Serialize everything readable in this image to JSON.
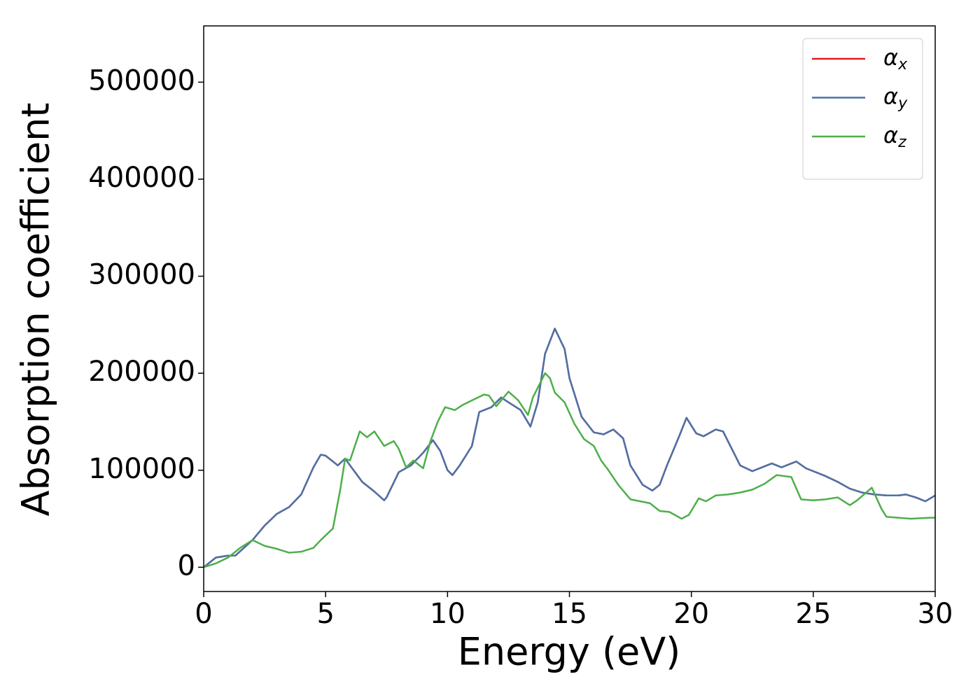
{
  "chart_data": {
    "type": "line",
    "x_label": "Energy (eV)",
    "y_label": "Absorption coefficient",
    "xlim": [
      0,
      30
    ],
    "ylim": [
      -25000,
      558000
    ],
    "xticks": [
      0,
      5,
      10,
      15,
      20,
      25,
      30
    ],
    "yticks": [
      0,
      100000,
      200000,
      300000,
      400000,
      500000
    ],
    "grid": false,
    "legend": "upper right",
    "series": [
      {
        "name": "αx",
        "color": "#e41a1c",
        "x": [
          0,
          0.5,
          1,
          1.3,
          2,
          2.5,
          3,
          3.5,
          4,
          4.5,
          4.8,
          5,
          5.5,
          5.8,
          6,
          6.5,
          7,
          7.4,
          7.5,
          8,
          8.5,
          9,
          9.4,
          9.7,
          10,
          10.2,
          10.5,
          11,
          11.3,
          11.8,
          12.2,
          12.5,
          13,
          13.4,
          13.7,
          14,
          14.4,
          14.8,
          15,
          15.5,
          16,
          16.4,
          16.8,
          17.2,
          17.5,
          18,
          18.4,
          18.7,
          19,
          19.5,
          19.8,
          20.2,
          20.5,
          21,
          21.3,
          21.7,
          22,
          22.5,
          23,
          23.3,
          23.7,
          24,
          24.3,
          24.7,
          25,
          25.5,
          26,
          26.5,
          27,
          27.5,
          28,
          28.5,
          28.8,
          29.2,
          29.6,
          30
        ],
        "values": [
          0,
          10000,
          12000,
          12000,
          28000,
          43000,
          55000,
          62000,
          75000,
          103000,
          116000,
          115000,
          105000,
          112000,
          105000,
          88000,
          78000,
          69000,
          72000,
          98000,
          105000,
          118000,
          131000,
          120000,
          100000,
          95000,
          105000,
          125000,
          160000,
          165000,
          175000,
          170000,
          162000,
          145000,
          170000,
          220000,
          246000,
          225000,
          195000,
          155000,
          139000,
          137000,
          142000,
          133000,
          105000,
          85000,
          79000,
          85000,
          105000,
          135000,
          154000,
          138000,
          135000,
          142000,
          140000,
          120000,
          105000,
          99000,
          104000,
          107000,
          103000,
          106000,
          109000,
          102000,
          99000,
          94000,
          88000,
          81000,
          77000,
          75000,
          74000,
          74000,
          75000,
          72000,
          68000,
          74000
        ]
      },
      {
        "name": "αy",
        "color": "#4a72a8",
        "x": [
          0,
          0.5,
          1,
          1.3,
          2,
          2.5,
          3,
          3.5,
          4,
          4.5,
          4.8,
          5,
          5.5,
          5.8,
          6,
          6.5,
          7,
          7.4,
          7.5,
          8,
          8.5,
          9,
          9.4,
          9.7,
          10,
          10.2,
          10.5,
          11,
          11.3,
          11.8,
          12.2,
          12.5,
          13,
          13.4,
          13.7,
          14,
          14.4,
          14.8,
          15,
          15.5,
          16,
          16.4,
          16.8,
          17.2,
          17.5,
          18,
          18.4,
          18.7,
          19,
          19.5,
          19.8,
          20.2,
          20.5,
          21,
          21.3,
          21.7,
          22,
          22.5,
          23,
          23.3,
          23.7,
          24,
          24.3,
          24.7,
          25,
          25.5,
          26,
          26.5,
          27,
          27.5,
          28,
          28.5,
          28.8,
          29.2,
          29.6,
          30
        ],
        "values": [
          0,
          10000,
          12000,
          12000,
          28000,
          43000,
          55000,
          62000,
          75000,
          103000,
          116000,
          115000,
          105000,
          112000,
          105000,
          88000,
          78000,
          69000,
          72000,
          98000,
          105000,
          118000,
          131000,
          120000,
          100000,
          95000,
          105000,
          125000,
          160000,
          165000,
          175000,
          170000,
          162000,
          145000,
          170000,
          220000,
          246000,
          225000,
          195000,
          155000,
          139000,
          137000,
          142000,
          133000,
          105000,
          85000,
          79000,
          85000,
          105000,
          135000,
          154000,
          138000,
          135000,
          142000,
          140000,
          120000,
          105000,
          99000,
          104000,
          107000,
          103000,
          106000,
          109000,
          102000,
          99000,
          94000,
          88000,
          81000,
          77000,
          75000,
          74000,
          74000,
          75000,
          72000,
          68000,
          74000
        ]
      },
      {
        "name": "αz",
        "color": "#4daf4a",
        "x": [
          0,
          0.5,
          1,
          1.5,
          2,
          2.5,
          3,
          3.5,
          4,
          4.5,
          4.8,
          5.3,
          5.6,
          5.8,
          6,
          6.4,
          6.7,
          7,
          7.4,
          7.8,
          8,
          8.3,
          8.6,
          9,
          9.3,
          9.6,
          9.9,
          10.3,
          10.6,
          11,
          11.5,
          11.7,
          12,
          12.2,
          12.5,
          12.9,
          13.3,
          13.5,
          14,
          14.2,
          14.4,
          14.8,
          15.2,
          15.6,
          16,
          16.3,
          16.6,
          17,
          17.5,
          17.9,
          18.3,
          18.7,
          19.1,
          19.6,
          19.9,
          20.3,
          20.6,
          21,
          21.5,
          22,
          22.5,
          23,
          23.5,
          24.1,
          24.5,
          25,
          25.5,
          26,
          26.5,
          26.8,
          27.4,
          27.8,
          28,
          29,
          29.8,
          30
        ],
        "values": [
          0,
          4000,
          10000,
          20000,
          28000,
          22000,
          19000,
          15000,
          16000,
          20000,
          28000,
          40000,
          80000,
          112000,
          110000,
          140000,
          134000,
          140000,
          125000,
          130000,
          122000,
          103000,
          110000,
          102000,
          130000,
          150000,
          165000,
          162000,
          167000,
          172000,
          178000,
          177000,
          166000,
          172000,
          181000,
          172000,
          157000,
          175000,
          200000,
          195000,
          180000,
          170000,
          148000,
          132000,
          125000,
          110000,
          100000,
          85000,
          70000,
          68000,
          66000,
          58000,
          57000,
          50000,
          54000,
          71000,
          68000,
          74000,
          75000,
          77000,
          80000,
          86000,
          95000,
          93000,
          70000,
          69000,
          70000,
          72000,
          64000,
          69000,
          82000,
          60000,
          52000,
          50000,
          51000,
          51000
        ]
      }
    ]
  }
}
